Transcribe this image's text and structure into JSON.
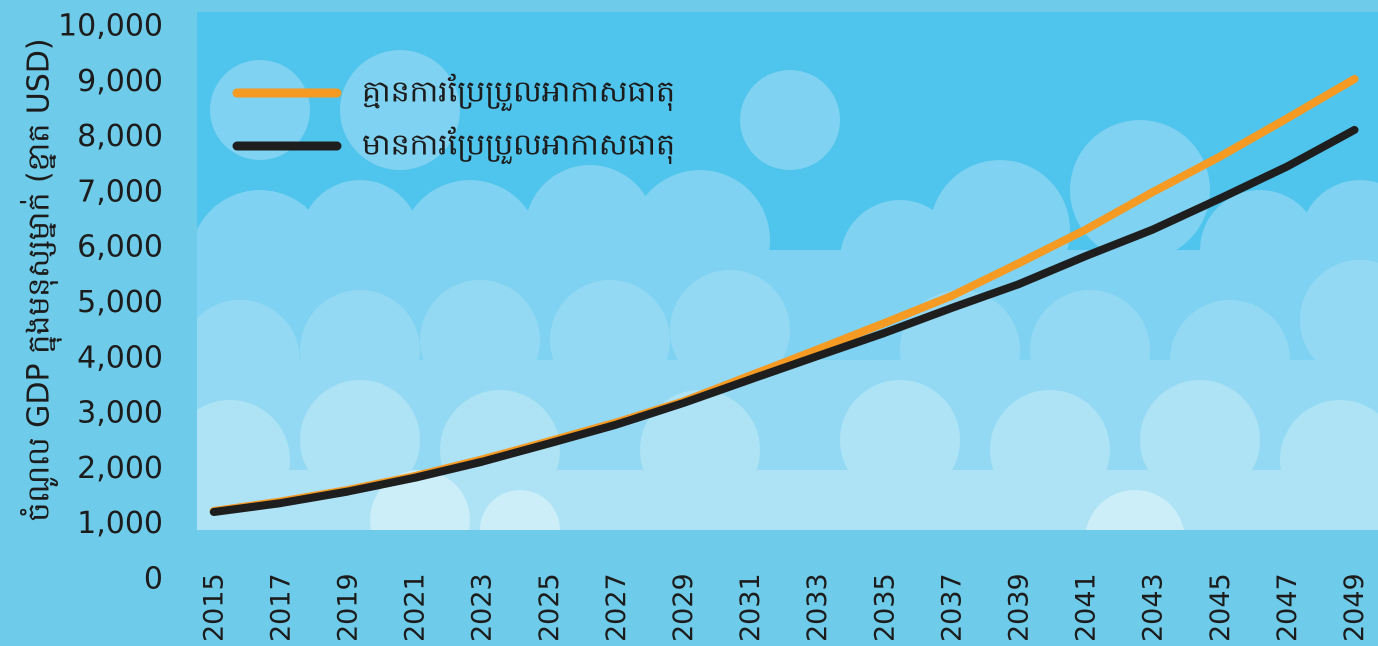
{
  "chart_data": {
    "type": "line",
    "y_label": "ចំណូល GDP ក្នុងមនុស្សម្នាក់ (ខ្នាត USD)",
    "x": [
      2015,
      2017,
      2019,
      2021,
      2023,
      2025,
      2027,
      2029,
      2031,
      2033,
      2035,
      2037,
      2039,
      2041,
      2043,
      2045,
      2047,
      2049
    ],
    "series": [
      {
        "name": "គ្មានការប្រែប្រួលអាកាសធាតុ",
        "color": "#f59a23",
        "values": [
          1250,
          1420,
          1630,
          1880,
          2180,
          2510,
          2850,
          3230,
          3700,
          4170,
          4650,
          5140,
          5730,
          6340,
          7020,
          7660,
          8350,
          9060
        ]
      },
      {
        "name": "មានការប្រែប្រួលអាកាសធាតុ",
        "color": "#1e1e1e",
        "values": [
          1230,
          1390,
          1600,
          1850,
          2140,
          2470,
          2810,
          3200,
          3630,
          4050,
          4470,
          4920,
          5350,
          5860,
          6340,
          6900,
          7480,
          8140
        ]
      }
    ],
    "xlim": [
      2014.5,
      2049.7
    ],
    "xticks": [
      2015,
      2017,
      2019,
      2021,
      2023,
      2025,
      2027,
      2029,
      2031,
      2033,
      2035,
      2037,
      2039,
      2041,
      2043,
      2045,
      2047,
      2049
    ],
    "ylim": [
      0,
      10000
    ],
    "yticks": [
      0,
      {
        "value": 1000,
        "label": "1,000"
      },
      {
        "value": 2000,
        "label": "2,000"
      },
      {
        "value": 3000,
        "label": "3,000"
      },
      {
        "value": 4000,
        "label": "4,000"
      },
      {
        "value": 5000,
        "label": "5,000"
      },
      {
        "value": 6000,
        "label": "6,000"
      },
      {
        "value": 7000,
        "label": "7,000"
      },
      {
        "value": 8000,
        "label": "8,000"
      },
      {
        "value": 9000,
        "label": "9,000"
      },
      {
        "value": 10000,
        "label": "10,000"
      }
    ]
  }
}
